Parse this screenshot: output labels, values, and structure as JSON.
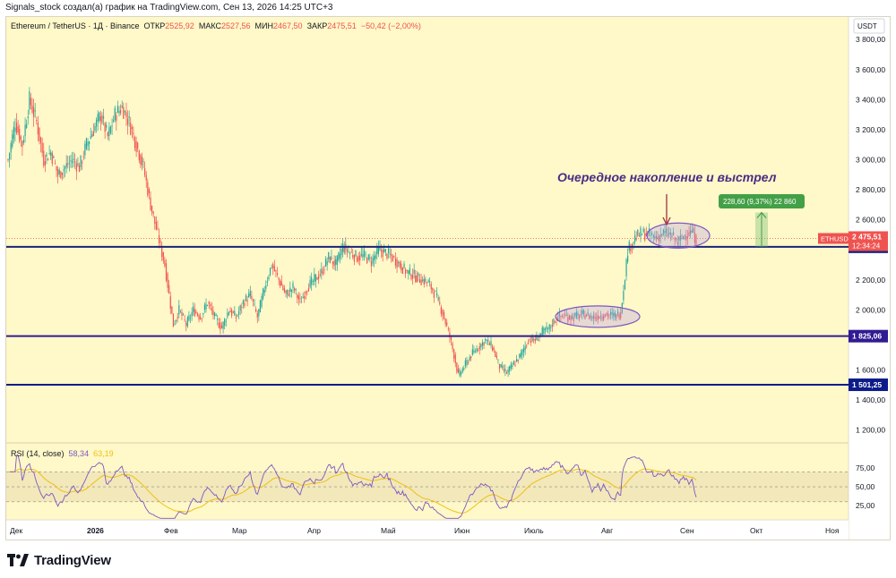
{
  "header": {
    "caption": "Signals_stock создал(а) график на TradingView.com, Сен 13, 2026 14:25 UTC+3"
  },
  "legend": {
    "symbol": "Ethereum / TetherUS · 1Д · Binance",
    "open_label": "ОТКР",
    "open": "2525,92",
    "high_label": "МАКС",
    "high": "2527,56",
    "low_label": "МИН",
    "low": "2467,50",
    "close_label": "ЗАКР",
    "close": "2475,51",
    "change": "−50,42 (−2,00%)"
  },
  "price_axis": {
    "currency": "USDT",
    "ticks": [
      "3 800,00",
      "3 600,00",
      "3 400,00",
      "3 200,00",
      "3 000,00",
      "2 800,00",
      "2 600,00",
      "2 200,00",
      "2 000,00",
      "1 600,00",
      "1 400,00",
      "1 200,00"
    ],
    "tick_values": [
      3800,
      3600,
      3400,
      3200,
      3000,
      2800,
      2600,
      2200,
      2000,
      1600,
      1400,
      1200
    ]
  },
  "price_labels": {
    "symbol_tag": "ETHUSDT",
    "last_price": "2 475,51",
    "countdown": "12:34:24",
    "level1": "2 419,85",
    "level2": "1 825,06",
    "level3": "1 501,25"
  },
  "measure": {
    "label": "228,60 (9,37%) 22 860"
  },
  "annotation": {
    "text": "Очередное накопление и выстрел"
  },
  "rsi": {
    "title": "RSI (14, close)",
    "value": "58,34",
    "ma_value": "63,19",
    "ticks": [
      "75,00",
      "50,00",
      "25,00"
    ],
    "tick_values": [
      75,
      50,
      25
    ]
  },
  "time_axis": {
    "labels": [
      "Дек",
      "2026",
      "Фев",
      "Мар",
      "Апр",
      "Май",
      "Июн",
      "Июль",
      "Авг",
      "Сен",
      "Окт",
      "Ноя"
    ]
  },
  "brand": {
    "name": "TradingView"
  },
  "chart_data": {
    "type": "candlestick",
    "symbol": "ETHUSDT",
    "ylim": [
      1150,
      3950
    ],
    "horizontal_levels": [
      2419.85,
      1825.06,
      1501.25
    ],
    "last_price": 2475.51,
    "path": [
      [
        0,
        3000
      ],
      [
        5,
        3250
      ],
      [
        10,
        3100
      ],
      [
        15,
        3400
      ],
      [
        20,
        3250
      ],
      [
        25,
        3000
      ],
      [
        30,
        3050
      ],
      [
        35,
        2900
      ],
      [
        40,
        2950
      ],
      [
        45,
        3000
      ],
      [
        50,
        2950
      ],
      [
        55,
        3100
      ],
      [
        60,
        3200
      ],
      [
        65,
        3300
      ],
      [
        70,
        3150
      ],
      [
        75,
        3300
      ],
      [
        80,
        3350
      ],
      [
        85,
        3250
      ],
      [
        90,
        3100
      ],
      [
        95,
        2950
      ],
      [
        100,
        2700
      ],
      [
        105,
        2500
      ],
      [
        110,
        2300
      ],
      [
        113,
        2100
      ],
      [
        116,
        1900
      ],
      [
        120,
        2000
      ],
      [
        125,
        1900
      ],
      [
        130,
        2000
      ],
      [
        135,
        1950
      ],
      [
        140,
        2050
      ],
      [
        145,
        1950
      ],
      [
        150,
        1880
      ],
      [
        155,
        2000
      ],
      [
        160,
        1950
      ],
      [
        165,
        2050
      ],
      [
        170,
        2100
      ],
      [
        175,
        1950
      ],
      [
        180,
        2150
      ],
      [
        185,
        2300
      ],
      [
        190,
        2200
      ],
      [
        195,
        2100
      ],
      [
        200,
        2150
      ],
      [
        205,
        2050
      ],
      [
        210,
        2150
      ],
      [
        215,
        2200
      ],
      [
        220,
        2250
      ],
      [
        225,
        2350
      ],
      [
        230,
        2300
      ],
      [
        235,
        2420
      ],
      [
        240,
        2380
      ],
      [
        245,
        2350
      ],
      [
        250,
        2360
      ],
      [
        255,
        2320
      ],
      [
        260,
        2400
      ],
      [
        265,
        2380
      ],
      [
        270,
        2350
      ],
      [
        275,
        2300
      ],
      [
        280,
        2250
      ],
      [
        285,
        2230
      ],
      [
        290,
        2200
      ],
      [
        295,
        2180
      ],
      [
        300,
        2100
      ],
      [
        305,
        1980
      ],
      [
        310,
        1820
      ],
      [
        313,
        1700
      ],
      [
        316,
        1560
      ],
      [
        320,
        1620
      ],
      [
        325,
        1700
      ],
      [
        330,
        1750
      ],
      [
        335,
        1800
      ],
      [
        340,
        1750
      ],
      [
        345,
        1620
      ],
      [
        350,
        1580
      ],
      [
        355,
        1640
      ],
      [
        360,
        1700
      ],
      [
        365,
        1800
      ],
      [
        370,
        1800
      ],
      [
        375,
        1850
      ],
      [
        380,
        1880
      ],
      [
        385,
        1950
      ],
      [
        390,
        1960
      ],
      [
        395,
        1950
      ],
      [
        400,
        1960
      ],
      [
        405,
        1970
      ],
      [
        410,
        1950
      ],
      [
        415,
        1960
      ],
      [
        420,
        1970
      ],
      [
        425,
        1960
      ],
      [
        430,
        1980
      ],
      [
        435,
        2400
      ],
      [
        440,
        2480
      ],
      [
        445,
        2510
      ],
      [
        450,
        2500
      ],
      [
        455,
        2480
      ],
      [
        460,
        2510
      ],
      [
        465,
        2500
      ],
      [
        470,
        2450
      ],
      [
        475,
        2500
      ],
      [
        480,
        2520
      ],
      [
        483,
        2476
      ]
    ],
    "rsi_levels": [
      70,
      50,
      30
    ]
  }
}
